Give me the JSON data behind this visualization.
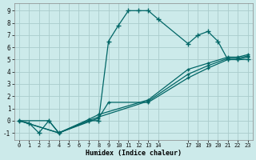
{
  "xlabel": "Humidex (Indice chaleur)",
  "bg_color": "#cceaea",
  "grid_color": "#aacccc",
  "line_color": "#006666",
  "xlim": [
    -0.5,
    23.5
  ],
  "ylim": [
    -1.6,
    9.6
  ],
  "xticks": [
    0,
    1,
    2,
    3,
    4,
    5,
    6,
    7,
    8,
    9,
    10,
    11,
    12,
    13,
    14,
    17,
    18,
    19,
    20,
    21,
    22,
    23
  ],
  "yticks": [
    -1,
    0,
    1,
    2,
    3,
    4,
    5,
    6,
    7,
    8,
    9
  ],
  "line1_x": [
    0,
    1,
    2,
    3,
    4,
    7,
    8,
    9,
    10,
    11,
    12,
    13,
    14,
    17,
    18,
    19,
    20,
    21,
    22,
    23
  ],
  "line1_y": [
    0.0,
    -0.2,
    -1.0,
    0.0,
    -1.0,
    0.0,
    0.0,
    6.5,
    7.8,
    9.0,
    9.0,
    9.0,
    8.3,
    6.3,
    7.0,
    7.3,
    6.5,
    5.0,
    5.0,
    5.0
  ],
  "line2_x": [
    0,
    4,
    8,
    9,
    13,
    17,
    19,
    21,
    22,
    23
  ],
  "line2_y": [
    0.0,
    -1.0,
    0.2,
    1.5,
    1.5,
    3.5,
    4.3,
    5.0,
    5.0,
    5.2
  ],
  "line3_x": [
    0,
    4,
    7,
    8,
    13,
    17,
    19,
    21,
    22,
    23
  ],
  "line3_y": [
    0.0,
    -1.0,
    0.0,
    0.3,
    1.6,
    3.8,
    4.5,
    5.1,
    5.1,
    5.3
  ],
  "line4_x": [
    0,
    3,
    4,
    7,
    8,
    13,
    17,
    19,
    21,
    22,
    23
  ],
  "line4_y": [
    0.0,
    0.0,
    -1.0,
    0.1,
    0.5,
    1.7,
    4.2,
    4.7,
    5.2,
    5.2,
    5.4
  ]
}
